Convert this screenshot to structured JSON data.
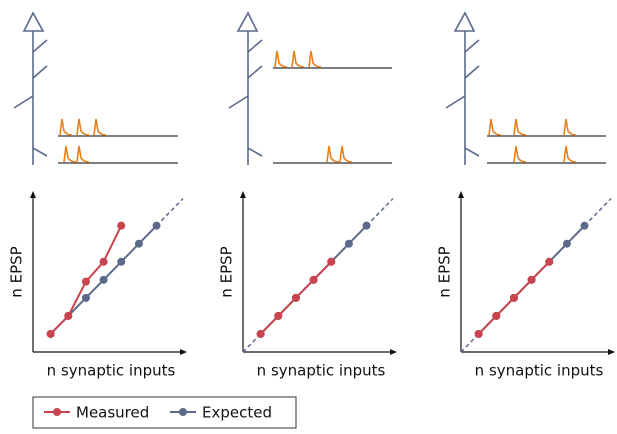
{
  "chart_data": [
    {
      "type": "line",
      "x_label": "n synaptic inputs",
      "y_label": "n EPSP",
      "x": [
        1,
        2,
        3,
        4,
        5,
        6,
        7
      ],
      "xlim": [
        0,
        8.5
      ],
      "ylim": [
        0,
        8.7
      ],
      "series": [
        {
          "name": "Measured",
          "color": "#c9444f",
          "values": [
            1,
            2,
            3.9,
            5,
            7,
            null,
            null
          ]
        },
        {
          "name": "Expected",
          "color": "#5b6a8a",
          "values": [
            1,
            2,
            3,
            4,
            5,
            6,
            7
          ]
        }
      ]
    },
    {
      "type": "line",
      "x_label": "n synaptic inputs",
      "y_label": "n EPSP",
      "x": [
        1,
        2,
        3,
        4,
        5,
        6,
        7
      ],
      "xlim": [
        0,
        8.5
      ],
      "ylim": [
        0,
        8.7
      ],
      "series": [
        {
          "name": "Measured",
          "color": "#c9444f",
          "values": [
            1,
            2,
            3,
            4,
            5,
            null,
            null
          ]
        },
        {
          "name": "Expected",
          "color": "#5b6a8a",
          "values": [
            1,
            2,
            3,
            4,
            5,
            6,
            7
          ]
        }
      ]
    },
    {
      "type": "line",
      "x_label": "n synaptic inputs",
      "y_label": "n EPSP",
      "x": [
        1,
        2,
        3,
        4,
        5,
        6,
        7
      ],
      "xlim": [
        0,
        8.5
      ],
      "ylim": [
        0,
        8.7
      ],
      "series": [
        {
          "name": "Measured",
          "color": "#c9444f",
          "values": [
            1,
            2,
            3,
            4,
            5,
            null,
            null
          ]
        },
        {
          "name": "Expected",
          "color": "#5b6a8a",
          "values": [
            1,
            2,
            3,
            4,
            5,
            6,
            7
          ]
        }
      ]
    }
  ]
}
